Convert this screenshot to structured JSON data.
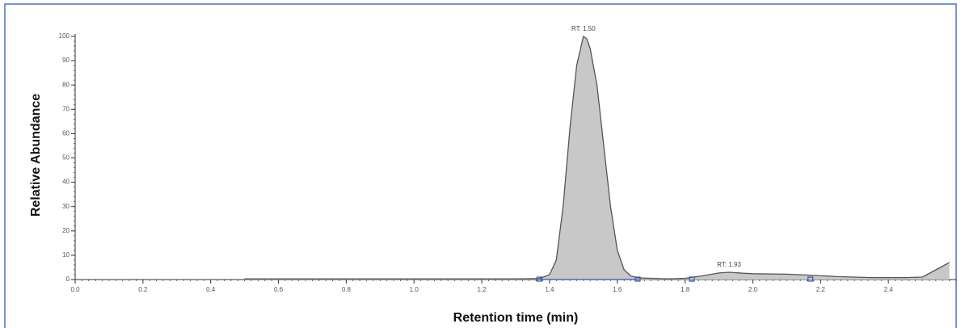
{
  "chart_data": {
    "type": "area",
    "x_label": "Retention time (min)",
    "y_label": "Relative Abundance",
    "x": [
      0.5,
      0.8,
      1.1,
      1.3,
      1.37,
      1.4,
      1.42,
      1.44,
      1.46,
      1.48,
      1.5,
      1.51,
      1.52,
      1.54,
      1.56,
      1.58,
      1.6,
      1.62,
      1.64,
      1.66,
      1.7,
      1.75,
      1.8,
      1.85,
      1.9,
      1.93,
      1.97,
      2.0,
      2.1,
      2.17,
      2.25,
      2.35,
      2.45,
      2.5,
      2.54,
      2.58
    ],
    "values": [
      0.3,
      0.3,
      0.3,
      0.3,
      0.4,
      2,
      8,
      30,
      62,
      88,
      100,
      99,
      95,
      80,
      55,
      30,
      12,
      4,
      1.5,
      0.7,
      0.5,
      0.3,
      0.5,
      1.5,
      2.7,
      3,
      2.6,
      2.4,
      2.2,
      1.8,
      1.2,
      0.8,
      0.8,
      1,
      4,
      7
    ],
    "color": "#555555",
    "fill": "#c8c8c8",
    "markers": [
      1.37,
      1.66,
      1.82,
      2.17
    ],
    "marker_color": "#3a4fb0",
    "annotations": [
      {
        "text": "RT: 1.50",
        "x": 1.5,
        "y": 100
      },
      {
        "text": "RT: 1.93",
        "x": 1.93,
        "y": 3
      }
    ],
    "xlim": [
      0,
      2.6
    ],
    "ylim": [
      0,
      100
    ],
    "xticks": [
      {
        "value": 0,
        "label": "0.0"
      },
      0.2,
      0.4,
      0.6,
      0.8,
      {
        "value": 1,
        "label": "1.0"
      },
      1.2,
      1.4,
      1.6,
      1.8,
      {
        "value": 2,
        "label": "2.0"
      },
      2.2,
      2.4
    ],
    "yticks": [
      0,
      10,
      20,
      30,
      40,
      50,
      60,
      70,
      80,
      90,
      100
    ]
  }
}
